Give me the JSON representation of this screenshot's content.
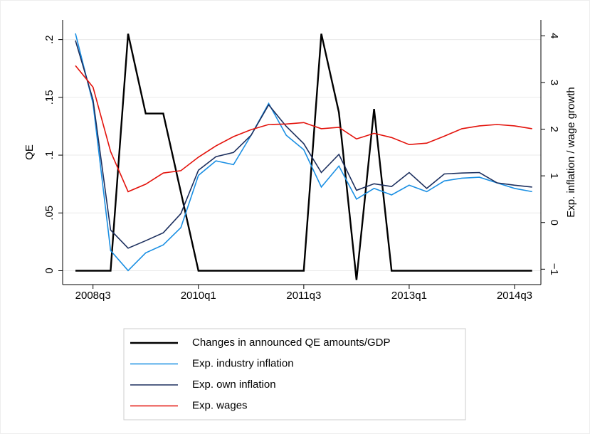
{
  "chart_data": {
    "type": "line",
    "categories": [
      null,
      "2008q3",
      null,
      null,
      null,
      null,
      null,
      "2010q1",
      null,
      null,
      null,
      null,
      null,
      "2011q3",
      null,
      null,
      null,
      null,
      null,
      "2013q1",
      null,
      null,
      null,
      null,
      null,
      "2014q3",
      null
    ],
    "ylabel": "QE",
    "y2label": "Exp. inflation / wage growth",
    "ylim": [
      -0.012,
      0.217
    ],
    "yticks": [
      {
        "value": 0,
        "label": "0"
      },
      {
        "value": 0.05,
        "label": ".05"
      },
      {
        "value": 0.1,
        "label": ".1"
      },
      {
        "value": 0.15,
        "label": ".15"
      },
      {
        "value": 0.2,
        "label": ".2"
      }
    ],
    "y2lim": [
      -1.33,
      4.34
    ],
    "y2ticks": [
      {
        "value": -1,
        "label": "−1"
      },
      0,
      1,
      2,
      3,
      4
    ],
    "grid": true,
    "series": [
      {
        "name": "Changes in announced QE amounts/GDP",
        "color": "#000000",
        "axis": "y",
        "values": [
          0,
          0,
          0,
          0.205,
          0.136,
          0.136,
          0.068,
          0,
          0,
          0,
          0,
          0,
          0,
          0,
          0.205,
          0.137,
          -0.008,
          0.14,
          0,
          0,
          0,
          0,
          0,
          0,
          0,
          0,
          0
        ]
      },
      {
        "name": "Exp. industry inflation",
        "color": "#1a8fe3",
        "axis": "y2",
        "values": [
          4.05,
          2.55,
          -0.6,
          -1.03,
          -0.65,
          -0.48,
          -0.11,
          1.01,
          1.32,
          1.24,
          1.87,
          2.55,
          1.87,
          1.56,
          0.76,
          1.21,
          0.5,
          0.73,
          0.59,
          0.8,
          0.66,
          0.89,
          0.95,
          0.97,
          0.85,
          0.73,
          0.66
        ]
      },
      {
        "name": "Exp. own inflation",
        "color": "#1c2f5e",
        "axis": "y2",
        "values": [
          3.9,
          2.63,
          -0.16,
          -0.55,
          -0.39,
          -0.22,
          0.19,
          1.12,
          1.41,
          1.5,
          1.87,
          2.52,
          2.06,
          1.69,
          1.07,
          1.46,
          0.69,
          0.83,
          0.77,
          1.07,
          0.73,
          1.04,
          1.06,
          1.07,
          0.85,
          0.8,
          0.76
        ]
      },
      {
        "name": "Exp. wages",
        "color": "#e3120b",
        "axis": "y2",
        "values": [
          3.36,
          2.9,
          1.52,
          0.66,
          0.82,
          1.06,
          1.11,
          1.4,
          1.64,
          1.84,
          1.99,
          2.1,
          2.11,
          2.14,
          2.01,
          2.04,
          1.79,
          1.91,
          1.82,
          1.67,
          1.7,
          1.85,
          2.01,
          2.07,
          2.1,
          2.07,
          2.01
        ]
      }
    ]
  }
}
